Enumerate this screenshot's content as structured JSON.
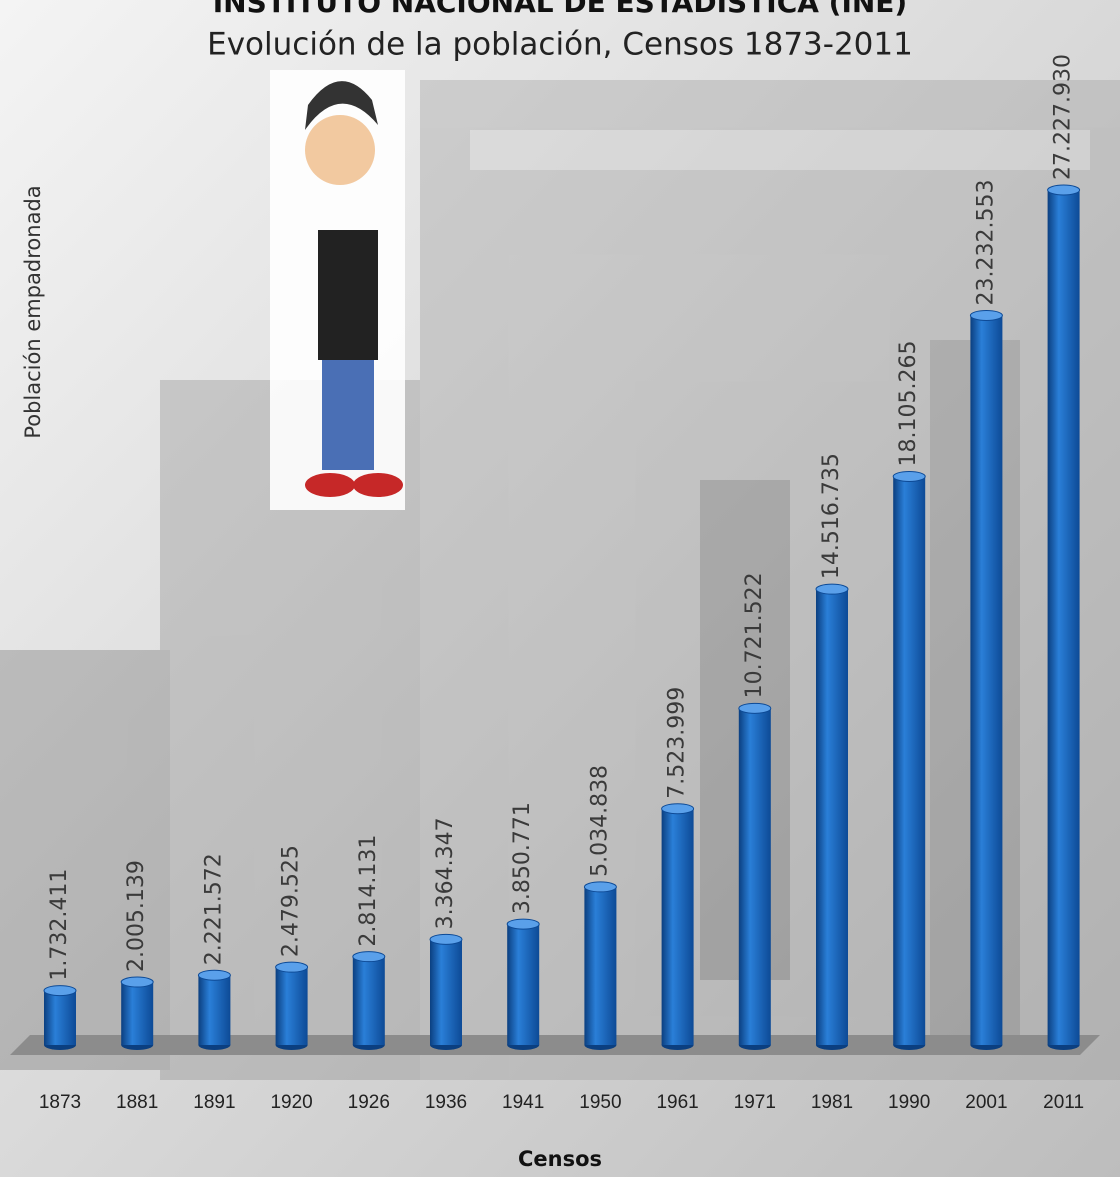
{
  "chart_data": {
    "type": "bar",
    "title": "INSTITUTO NACIONAL DE ESTADÍSTICA (INE)",
    "subtitle": "Evolución de la población, Censos 1873-2011",
    "y_label": "Población empadronada",
    "x_label": "Censos",
    "categories": [
      "1873",
      "1881",
      "1891",
      "1920",
      "1926",
      "1936",
      "1941",
      "1950",
      "1961",
      "1971",
      "1981",
      "1990",
      "2001",
      "2011"
    ],
    "values": [
      1732411,
      2005139,
      2221572,
      2479525,
      2814131,
      3364347,
      3850771,
      5034838,
      7523999,
      10721522,
      14516735,
      18105265,
      23232553,
      27227930
    ],
    "value_labels": [
      "1.732.411",
      "2.005.139",
      "2.221.572",
      "2.479.525",
      "2.814.131",
      "3.364.347",
      "3.850.771",
      "5.034.838",
      "7.523.999",
      "10.721.522",
      "14.516.735",
      "18.105.265",
      "23.232.553",
      "27.227.930"
    ],
    "color": "#1565c0"
  }
}
